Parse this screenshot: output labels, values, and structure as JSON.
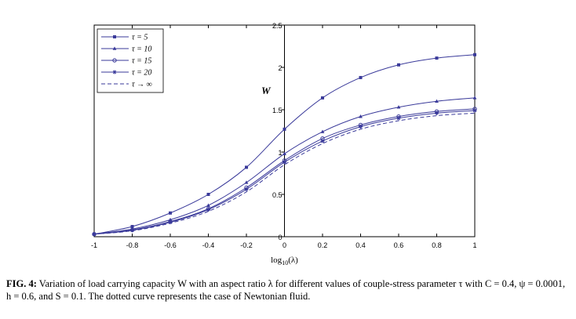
{
  "chart_data": {
    "type": "line",
    "xlabel": "log10(λ)",
    "xlabel_base": "log",
    "xlabel_sub": "10",
    "xlabel_rest": "(λ)",
    "ylabel": "W",
    "xlim": [
      -1,
      1
    ],
    "ylim": [
      0,
      2.5
    ],
    "xticks": [
      "-1",
      "-0.8",
      "-0.6",
      "-0.4",
      "-0.2",
      "0",
      "0.2",
      "0.4",
      "0.6",
      "0.8",
      "1"
    ],
    "yticks": [
      "0",
      "0.5",
      "1",
      "1.5",
      "2",
      "2.5"
    ],
    "legend_position": "top-left",
    "series": [
      {
        "name": "τ = 5",
        "marker": "square",
        "x": [
          -1,
          -0.8,
          -0.6,
          -0.4,
          -0.2,
          0,
          0.2,
          0.4,
          0.6,
          0.8,
          1
        ],
        "y": [
          0.03,
          0.12,
          0.28,
          0.5,
          0.82,
          1.27,
          1.64,
          1.88,
          2.03,
          2.11,
          2.15
        ]
      },
      {
        "name": "τ = 10",
        "marker": "triangle",
        "x": [
          -1,
          -0.8,
          -0.6,
          -0.4,
          -0.2,
          0,
          0.2,
          0.4,
          0.6,
          0.8,
          1
        ],
        "y": [
          0.03,
          0.09,
          0.2,
          0.37,
          0.64,
          0.98,
          1.24,
          1.42,
          1.53,
          1.6,
          1.64
        ]
      },
      {
        "name": "τ = 15",
        "marker": "circle",
        "x": [
          -1,
          -0.8,
          -0.6,
          -0.4,
          -0.2,
          0,
          0.2,
          0.4,
          0.6,
          0.8,
          1
        ],
        "y": [
          0.03,
          0.08,
          0.18,
          0.33,
          0.58,
          0.9,
          1.16,
          1.32,
          1.42,
          1.48,
          1.51
        ]
      },
      {
        "name": "τ = 20",
        "marker": "star",
        "x": [
          -1,
          -0.8,
          -0.6,
          -0.4,
          -0.2,
          0,
          0.2,
          0.4,
          0.6,
          0.8,
          1
        ],
        "y": [
          0.03,
          0.075,
          0.17,
          0.32,
          0.56,
          0.88,
          1.13,
          1.3,
          1.4,
          1.46,
          1.49
        ]
      },
      {
        "name": "τ → ∞",
        "marker": "none",
        "dashed": true,
        "x": [
          -1,
          -0.8,
          -0.6,
          -0.4,
          -0.2,
          0,
          0.2,
          0.4,
          0.6,
          0.8,
          1
        ],
        "y": [
          0.03,
          0.07,
          0.16,
          0.3,
          0.53,
          0.85,
          1.1,
          1.27,
          1.37,
          1.43,
          1.46
        ]
      }
    ]
  },
  "caption": {
    "label": "FIG. 4:",
    "text": "Variation of load carrying capacity W with an aspect ratio λ for different values of couple-stress parameter τ with C = 0.4, ψ = 0.0001, h = 0.6, and S = 0.1. The dotted curve represents the case of Newtonian fluid."
  },
  "colors": {
    "series": "#3a3a9a",
    "axis": "#000000"
  }
}
